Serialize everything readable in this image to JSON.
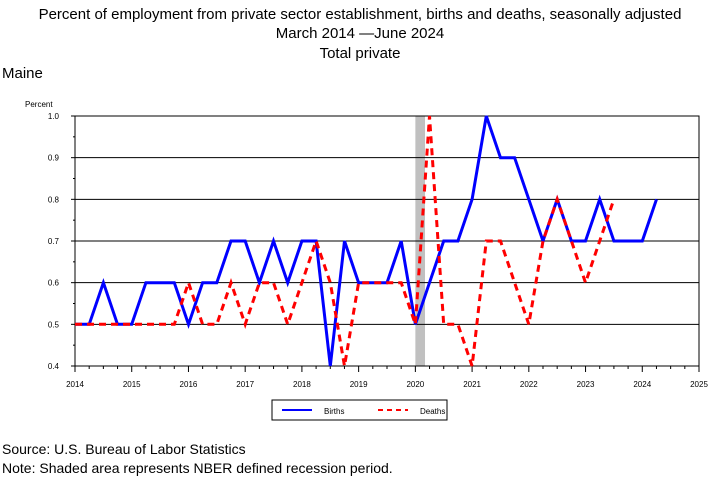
{
  "header": {
    "title_line1": "Percent of employment from private sector establishment, births and deaths, seasonally adjusted",
    "title_line2": "March 2014 —June 2024",
    "title_line3": "Total private",
    "region": "Maine"
  },
  "footer": {
    "source": "Source: U.S. Bureau of Labor Statistics",
    "note": "Note: Shaded area represents NBER defined recession period."
  },
  "chart_data": {
    "type": "line",
    "ylabel": "Percent",
    "ylim": [
      0.4,
      1.0
    ],
    "yticks": [
      "0.4",
      "0.5",
      "0.6",
      "0.7",
      "0.8",
      "0.9",
      "1.0"
    ],
    "xlim": [
      2014,
      2025
    ],
    "xticks": [
      "2014",
      "2015",
      "2016",
      "2017",
      "2018",
      "2019",
      "2020",
      "2021",
      "2022",
      "2023",
      "2024",
      "2025"
    ],
    "grid": "horizontal",
    "recession": {
      "start": 2020.0,
      "end": 2020.17
    },
    "legend_position": "bottom-center",
    "series": [
      {
        "name": "Births",
        "color": "#0000ff",
        "style": "solid",
        "x": [
          2014.0,
          2014.25,
          2014.5,
          2014.75,
          2015.0,
          2015.25,
          2015.5,
          2015.75,
          2016.0,
          2016.25,
          2016.5,
          2016.75,
          2017.0,
          2017.25,
          2017.5,
          2017.75,
          2018.0,
          2018.25,
          2018.5,
          2018.75,
          2019.0,
          2019.25,
          2019.5,
          2019.75,
          2020.0,
          2020.25,
          2020.5,
          2020.75,
          2021.0,
          2021.25,
          2021.5,
          2021.75,
          2022.0,
          2022.25,
          2022.5,
          2022.75,
          2023.0,
          2023.25,
          2023.5,
          2023.75,
          2024.0,
          2024.25
        ],
        "values": [
          0.5,
          0.5,
          0.6,
          0.5,
          0.5,
          0.6,
          0.6,
          0.6,
          0.5,
          0.6,
          0.6,
          0.7,
          0.7,
          0.6,
          0.7,
          0.6,
          0.7,
          0.7,
          0.4,
          0.7,
          0.6,
          0.6,
          0.6,
          0.7,
          0.5,
          0.6,
          0.7,
          0.7,
          0.8,
          1.0,
          0.9,
          0.9,
          0.8,
          0.7,
          0.8,
          0.7,
          0.7,
          0.8,
          0.7,
          0.7,
          0.7,
          0.8
        ]
      },
      {
        "name": "Deaths",
        "color": "#ff0000",
        "style": "dashed",
        "x": [
          2014.0,
          2014.25,
          2014.5,
          2014.75,
          2015.0,
          2015.25,
          2015.5,
          2015.75,
          2016.0,
          2016.25,
          2016.5,
          2016.75,
          2017.0,
          2017.25,
          2017.5,
          2017.75,
          2018.0,
          2018.25,
          2018.5,
          2018.75,
          2019.0,
          2019.25,
          2019.5,
          2019.75,
          2020.0,
          2020.25,
          2020.5,
          2020.75,
          2021.0,
          2021.25,
          2021.5,
          2021.75,
          2022.0,
          2022.25,
          2022.5,
          2022.75,
          2023.0,
          2023.25,
          2023.5
        ],
        "values": [
          0.5,
          0.5,
          0.5,
          0.5,
          0.5,
          0.5,
          0.5,
          0.5,
          0.6,
          0.5,
          0.5,
          0.6,
          0.5,
          0.6,
          0.6,
          0.5,
          0.6,
          0.7,
          0.6,
          0.4,
          0.6,
          0.6,
          0.6,
          0.6,
          0.5,
          1.0,
          0.5,
          0.5,
          0.4,
          0.7,
          0.7,
          0.6,
          0.5,
          0.7,
          0.8,
          0.7,
          0.6,
          0.7,
          0.8
        ]
      }
    ]
  }
}
